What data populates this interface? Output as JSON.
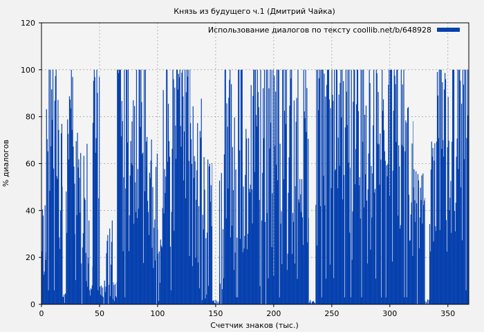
{
  "chart_data": {
    "type": "bar",
    "title": "Князь из будущего ч.1 (Дмитрий Чайка)",
    "xlabel": "Счетчик знаков (тыс.)",
    "ylabel": "% диалогов",
    "xlim": [
      0,
      368
    ],
    "ylim": [
      0,
      120
    ],
    "xticks": [
      0,
      50,
      100,
      150,
      200,
      250,
      300,
      350
    ],
    "yticks": [
      0,
      20,
      40,
      60,
      80,
      100,
      120
    ],
    "grid": true,
    "legend_position": "top-right",
    "colors": {
      "bar": "#0641ae",
      "background": "#f2f2f2",
      "plot_background": "#f4f4f4",
      "grid": "#a0a0a0"
    },
    "series": [
      {
        "name": "Использование диалогов по тексту coollib.net/b/648928",
        "segments": [
          {
            "x0": 0,
            "x1": 4,
            "min": 10,
            "max": 43
          },
          {
            "x0": 4,
            "x1": 18,
            "min": 20,
            "max": 100
          },
          {
            "x0": 18,
            "x1": 21,
            "min": 2,
            "max": 5
          },
          {
            "x0": 21,
            "x1": 29,
            "min": 20,
            "max": 100
          },
          {
            "x0": 29,
            "x1": 40,
            "min": 0,
            "max": 80
          },
          {
            "x0": 40,
            "x1": 44,
            "min": 0,
            "max": 40
          },
          {
            "x0": 44,
            "x1": 50,
            "min": 20,
            "max": 100
          },
          {
            "x0": 50,
            "x1": 54,
            "min": 0,
            "max": 8
          },
          {
            "x0": 54,
            "x1": 62,
            "min": 0,
            "max": 36
          },
          {
            "x0": 62,
            "x1": 65,
            "min": 0,
            "max": 10
          },
          {
            "x0": 65,
            "x1": 90,
            "min": 10,
            "max": 100
          },
          {
            "x0": 90,
            "x1": 100,
            "min": 0,
            "max": 74
          },
          {
            "x0": 100,
            "x1": 104,
            "min": 0,
            "max": 30
          },
          {
            "x0": 104,
            "x1": 128,
            "min": 20,
            "max": 100
          },
          {
            "x0": 128,
            "x1": 138,
            "min": 0,
            "max": 90
          },
          {
            "x0": 138,
            "x1": 147,
            "min": 0,
            "max": 63
          },
          {
            "x0": 147,
            "x1": 153,
            "min": 0,
            "max": 2
          },
          {
            "x0": 153,
            "x1": 156,
            "min": 0,
            "max": 60
          },
          {
            "x0": 156,
            "x1": 184,
            "min": 10,
            "max": 100
          },
          {
            "x0": 184,
            "x1": 198,
            "min": 0,
            "max": 100
          },
          {
            "x0": 198,
            "x1": 230,
            "min": 10,
            "max": 100
          },
          {
            "x0": 230,
            "x1": 236,
            "min": 0,
            "max": 2
          },
          {
            "x0": 236,
            "x1": 266,
            "min": 10,
            "max": 100
          },
          {
            "x0": 266,
            "x1": 282,
            "min": 10,
            "max": 100
          },
          {
            "x0": 282,
            "x1": 320,
            "min": 10,
            "max": 100
          },
          {
            "x0": 320,
            "x1": 330,
            "min": 0,
            "max": 60
          },
          {
            "x0": 330,
            "x1": 334,
            "min": 0,
            "max": 3
          },
          {
            "x0": 334,
            "x1": 340,
            "min": 20,
            "max": 70
          },
          {
            "x0": 340,
            "x1": 368,
            "min": 20,
            "max": 100
          }
        ]
      }
    ]
  }
}
